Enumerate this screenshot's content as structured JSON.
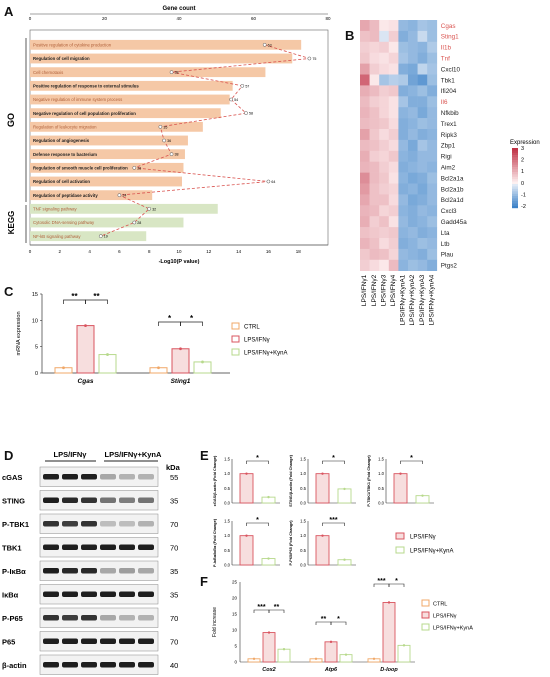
{
  "panel_labels": {
    "a": "A",
    "b": "B",
    "c": "C",
    "d": "D",
    "e": "E",
    "f": "F"
  },
  "colors": {
    "go_bar": "#f5c8a6",
    "kegg_bar": "#d8e6c4",
    "dash": "#d9534f",
    "ctrl": "#f0a868",
    "lps": "#d9545f",
    "kyna": "#b7d98c",
    "blot_bg": "#f2f2f2",
    "band": "#1e1e1e"
  },
  "chart_data": [
    {
      "type": "bar",
      "id": "A",
      "title": "Gene count",
      "xlabel": "-Log10(P value)",
      "top_ticks": [
        "0",
        "20",
        "40",
        "60",
        "80"
      ],
      "bottom_ticks": [
        "0",
        "2",
        "4",
        "6",
        "8",
        "10",
        "12",
        "14",
        "16",
        "18"
      ],
      "xlim": [
        0,
        20
      ],
      "group_labels": [
        "GO",
        "KEGG"
      ],
      "categories": [
        "Positive regulation of cytokine production",
        "Regulation of cell migration",
        "Cell chemotaxis",
        "Positive regulation of response to external stimulus",
        "Negative regulation of immune system process",
        "Negative regulation of cell population proliferation",
        "Regulation of leukocyte migration",
        "Regulation of angiogenesis",
        "Defense response to bacterium",
        "Regulation of smooth muscle cell proliferation",
        "Regulation of cell activation",
        "Regulation of peptidase activity",
        "TNF signaling pathway",
        "Cytosolic DNA-sensing pathway",
        "NF-kB signaling pathway"
      ],
      "highlight": [
        false,
        true,
        false,
        true,
        false,
        true,
        false,
        true,
        true,
        true,
        true,
        true,
        false,
        false,
        false
      ],
      "group": [
        "GO",
        "GO",
        "GO",
        "GO",
        "GO",
        "GO",
        "GO",
        "GO",
        "GO",
        "GO",
        "GO",
        "GO",
        "KEGG",
        "KEGG",
        "KEGG"
      ],
      "values": [
        18.2,
        17.6,
        15.8,
        13.6,
        13.4,
        12.8,
        11.6,
        10.6,
        10.4,
        10.3,
        10.2,
        8.2,
        12.6,
        10.3,
        7.8
      ],
      "gene_counts": [
        63,
        75,
        38,
        57,
        54,
        58,
        35,
        36,
        38,
        28,
        64,
        24,
        32,
        28,
        19
      ]
    },
    {
      "type": "heatmap",
      "id": "B",
      "rows": [
        "Cgas",
        "Sting1",
        "Il1b",
        "Tnf",
        "Cxcl10",
        "Tbk1",
        "Ifi204",
        "Il6",
        "Nfkbib",
        "Trex1",
        "Ripk3",
        "Zbp1",
        "Rigi",
        "Aim2",
        "Bcl2a1a",
        "Bcl2a1b",
        "Bcl2a1d",
        "Cxcl3",
        "Gadd45a",
        "Lta",
        "Ltb",
        "Plau",
        "Ptgs2"
      ],
      "highlight_rows": [
        true,
        true,
        true,
        true,
        false,
        false,
        false,
        true,
        false,
        false,
        false,
        false,
        false,
        false,
        false,
        false,
        false,
        false,
        false,
        false,
        false,
        false,
        false
      ],
      "columns": [
        "LPS/IFNγ1",
        "LPS/IFNγ2",
        "LPS/IFNγ3",
        "LPS/IFNγ4",
        "LPS/IFNγ+KynA1",
        "LPS/IFNγ+KynA2",
        "LPS/IFNγ+KynA3",
        "LPS/IFNγ+KynA4"
      ],
      "legend_title": "Expression",
      "legend_ticks": [
        "3",
        "2",
        "1",
        "0",
        "-1",
        "-2"
      ],
      "values": [
        [
          1.2,
          0.9,
          0.2,
          0.3,
          -1.0,
          -1.1,
          -0.8,
          -0.9
        ],
        [
          0.8,
          0.9,
          -0.2,
          0.6,
          -1.2,
          -1.0,
          -0.4,
          -0.9
        ],
        [
          0.6,
          0.5,
          0.6,
          0.2,
          -0.9,
          -1.0,
          -1.1,
          -0.7
        ],
        [
          0.7,
          0.4,
          0.3,
          0.5,
          -0.8,
          -1.0,
          -1.2,
          -0.9
        ],
        [
          1.3,
          0.6,
          0.4,
          0.3,
          -1.2,
          -1.3,
          -0.5,
          -0.8
        ],
        [
          2.2,
          0.2,
          -0.8,
          -0.6,
          -0.7,
          -1.4,
          -1.6,
          -0.9
        ],
        [
          1.1,
          0.9,
          0.6,
          0.7,
          -1.2,
          -1.1,
          -0.9,
          -1.2
        ],
        [
          0.9,
          0.6,
          0.5,
          0.3,
          -0.8,
          -1.2,
          -1.2,
          -0.9
        ],
        [
          1.0,
          0.8,
          0.5,
          0.3,
          -1.1,
          -1.0,
          -1.3,
          -1.0
        ],
        [
          0.9,
          0.8,
          0.7,
          0.4,
          -1.2,
          -1.1,
          -0.9,
          -1.0
        ],
        [
          1.3,
          0.7,
          0.4,
          0.6,
          -1.2,
          -1.0,
          -1.2,
          -1.1
        ],
        [
          0.9,
          0.8,
          0.6,
          0.4,
          -1.0,
          -1.3,
          -0.8,
          -1.0
        ],
        [
          1.1,
          0.6,
          0.5,
          0.7,
          -1.1,
          -1.2,
          -1.0,
          -1.0
        ],
        [
          1.0,
          0.9,
          0.6,
          0.4,
          -1.2,
          -1.1,
          -1.0,
          -1.1
        ],
        [
          1.6,
          0.9,
          0.7,
          0.3,
          -1.1,
          -1.3,
          -1.2,
          -0.9
        ],
        [
          1.4,
          0.8,
          0.6,
          0.5,
          -1.2,
          -1.1,
          -1.3,
          -1.0
        ],
        [
          1.2,
          0.8,
          0.8,
          0.4,
          -1.0,
          -1.3,
          -1.2,
          -1.0
        ],
        [
          1.0,
          0.9,
          0.5,
          0.6,
          -1.1,
          -1.2,
          -1.0,
          -1.1
        ],
        [
          1.1,
          0.6,
          0.8,
          0.3,
          -1.0,
          -1.2,
          -1.1,
          -0.9
        ],
        [
          0.8,
          0.7,
          0.6,
          0.7,
          -1.1,
          -1.0,
          -1.2,
          -1.1
        ],
        [
          1.0,
          0.8,
          0.4,
          0.6,
          -1.2,
          -1.1,
          -0.9,
          -1.0
        ],
        [
          0.7,
          0.9,
          0.8,
          0.5,
          -1.0,
          -1.1,
          -1.2,
          -0.9
        ],
        [
          0.6,
          0.4,
          0.2,
          0.9,
          -1.1,
          -0.9,
          -1.0,
          -1.2
        ]
      ]
    },
    {
      "type": "bar",
      "id": "C",
      "ylabel": "mRNA expression",
      "yticks": [
        "0",
        "5",
        "10",
        "15"
      ],
      "ylim": [
        0,
        15
      ],
      "categories": [
        "Cgas",
        "Sting1"
      ],
      "series": [
        {
          "name": "CTRL",
          "values": [
            1.0,
            1.0
          ]
        },
        {
          "name": "LPS/IFNγ",
          "values": [
            9.0,
            4.6
          ]
        },
        {
          "name": "LPS/IFNγ+KynA",
          "values": [
            3.5,
            2.1
          ]
        }
      ],
      "significance": [
        "**",
        "**",
        "*",
        "*"
      ]
    },
    {
      "type": "table",
      "id": "D",
      "groups": [
        "LPS/IFNγ",
        "LPS/IFNγ+KynA"
      ],
      "unit": "kDa",
      "proteins": [
        "cGAS",
        "STING",
        "P-TBK1",
        "TBK1",
        "P-IκBα",
        "IκBα",
        "P-P65",
        "P65",
        "β-actin"
      ],
      "kda": [
        "55",
        "35",
        "70",
        "70",
        "35",
        "35",
        "70",
        "70",
        "40"
      ],
      "intensity": [
        [
          1.0,
          1.0,
          1.0,
          0.35,
          0.3,
          0.3
        ],
        [
          1.0,
          0.95,
          0.9,
          0.6,
          0.55,
          0.6
        ],
        [
          0.9,
          0.85,
          0.9,
          0.25,
          0.25,
          0.3
        ],
        [
          1.0,
          1.0,
          1.0,
          1.0,
          1.0,
          1.0
        ],
        [
          1.0,
          0.95,
          0.95,
          0.35,
          0.4,
          0.35
        ],
        [
          1.0,
          1.0,
          1.0,
          1.0,
          1.0,
          1.0
        ],
        [
          0.9,
          0.85,
          0.9,
          0.35,
          0.3,
          0.3
        ],
        [
          1.0,
          1.0,
          1.0,
          1.0,
          1.0,
          1.0
        ],
        [
          1.0,
          1.0,
          1.0,
          1.0,
          1.0,
          1.0
        ]
      ]
    },
    {
      "type": "bar",
      "id": "E",
      "legend": [
        "LPS/IFNγ",
        "LPS/IFNγ+KynA"
      ],
      "panels": [
        {
          "ylabel": "cGAS/β-actin (Fold Change)",
          "yticks": [
            "0.0",
            "0.5",
            "1.0",
            "1.5"
          ],
          "values": [
            1.0,
            0.2
          ],
          "sig": "*"
        },
        {
          "ylabel": "STING/β-actin (Fold Change)",
          "yticks": [
            "0.0",
            "0.5",
            "1.0",
            "1.5"
          ],
          "values": [
            1.0,
            0.48
          ],
          "sig": "*"
        },
        {
          "ylabel": "P-TBK1/TBK1 (Fold Change)",
          "yticks": [
            "0.0",
            "0.5",
            "1.0",
            "1.5"
          ],
          "values": [
            1.0,
            0.25
          ],
          "sig": "*"
        },
        {
          "ylabel": "P-IκBα/IκBα (Fold Change)",
          "yticks": [
            "0.0",
            "0.5",
            "1.0",
            "1.5"
          ],
          "values": [
            1.0,
            0.22
          ],
          "sig": "*"
        },
        {
          "ylabel": "P-P65/P65 (Fold Change)",
          "yticks": [
            "0.0",
            "0.5",
            "1.0",
            "1.5"
          ],
          "values": [
            1.0,
            0.18
          ],
          "sig": "***"
        }
      ]
    },
    {
      "type": "bar",
      "id": "F",
      "ylabel": "Fold increase",
      "yticks": [
        "0",
        "5",
        "10",
        "15",
        "20",
        "25"
      ],
      "ylim": [
        0,
        25
      ],
      "categories": [
        "Cox2",
        "Atp6",
        "D-loop"
      ],
      "series": [
        {
          "name": "CTRL",
          "values": [
            1.0,
            1.0,
            1.0
          ]
        },
        {
          "name": "LPS/IFNγ",
          "values": [
            9.2,
            6.3,
            18.6
          ]
        },
        {
          "name": "LPS/IFNγ+KynA",
          "values": [
            4.0,
            2.3,
            5.2
          ]
        }
      ],
      "significance": [
        "***",
        "**",
        "**",
        "*",
        "***",
        "*"
      ]
    }
  ]
}
